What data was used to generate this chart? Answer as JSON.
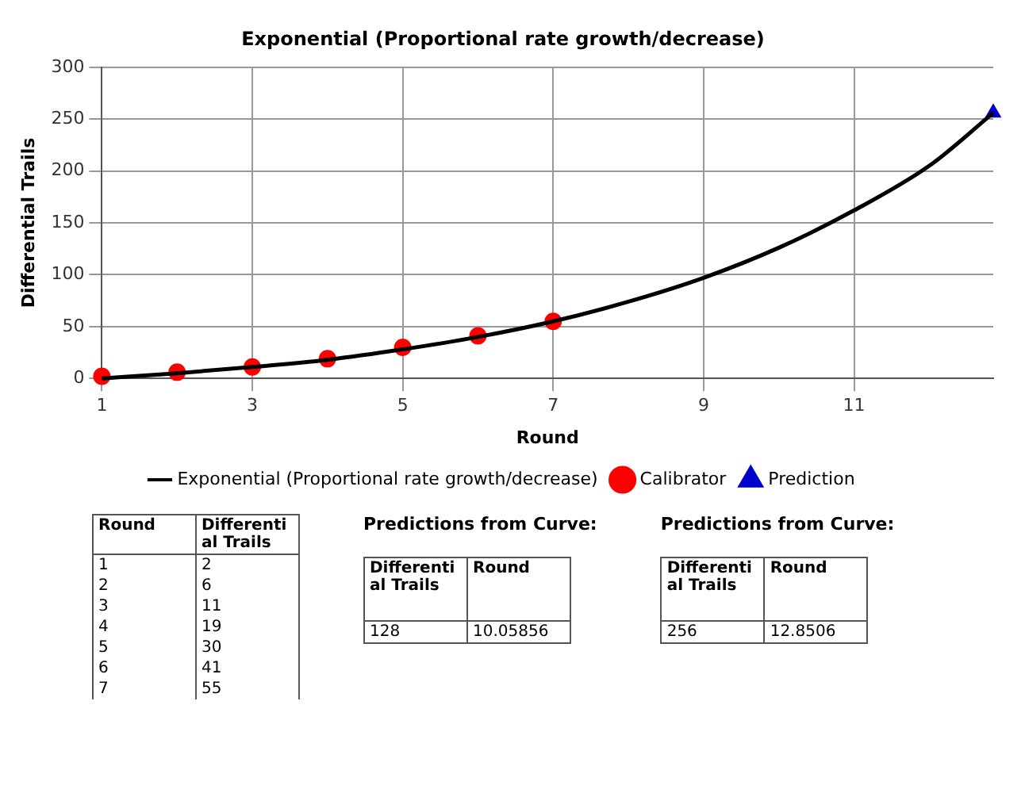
{
  "chart_data": {
    "type": "line",
    "title": "Exponential (Proportional rate growth/decrease)",
    "xlabel": "Round",
    "ylabel": "Differential Trails",
    "xlim": [
      1,
      12.8506
    ],
    "xticks": [
      1,
      3,
      5,
      7,
      9,
      11
    ],
    "ylim": [
      0,
      300
    ],
    "yticks": [
      0,
      50,
      100,
      150,
      200,
      250,
      300
    ],
    "grid": true,
    "legend": "bottom",
    "series": [
      {
        "name": "Exponential (Proportional rate growth/decrease)",
        "color": "#000000",
        "marker": "none",
        "line_style": "solid",
        "x": [
          1,
          2,
          3,
          4,
          5,
          6,
          7,
          8,
          9,
          10,
          11,
          12,
          12.8506
        ],
        "values": [
          0,
          5,
          11,
          18,
          28,
          40,
          55,
          74,
          97,
          126,
          162,
          205,
          256
        ]
      },
      {
        "name": "Calibrator",
        "type": "scatter",
        "color": "#ff0000",
        "marker": "circle",
        "x": [
          1,
          2,
          3,
          4,
          5,
          6,
          7
        ],
        "values": [
          2,
          6,
          11,
          19,
          30,
          41,
          55
        ]
      },
      {
        "name": "Prediction",
        "type": "scatter",
        "color": "#0000cc",
        "marker": "triangle",
        "x": [
          12.8506
        ],
        "values": [
          256
        ]
      }
    ],
    "annotations": [
      "Round",
      "Differential Trails",
      "1",
      "2",
      "2",
      "6",
      "3",
      "11",
      "4",
      "19",
      "5",
      "30",
      "6",
      "41",
      "7",
      "55",
      "Predictions from Curve:",
      "Differential Trails",
      "Round",
      "128",
      "10.05856",
      "Predictions from Curve:",
      "Differential Trails",
      "Round",
      "256",
      "12.8506"
    ]
  }
}
